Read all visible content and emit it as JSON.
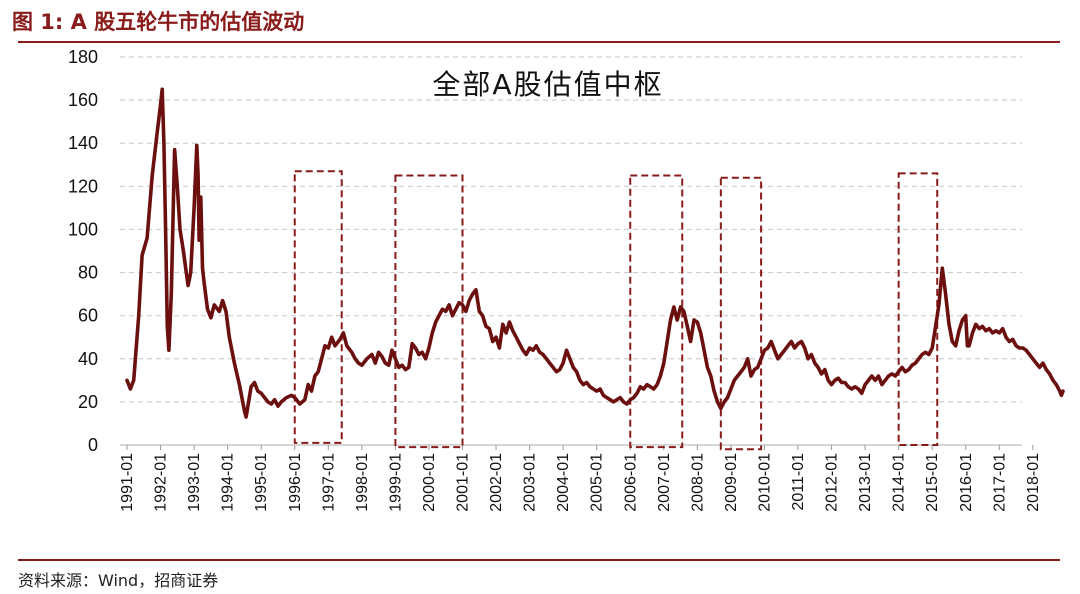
{
  "figure_title": "图 1:  A 股五轮牛市的估值波动",
  "source": "资料来源：Wind，招商证券",
  "colors": {
    "line": "#6b0f0f",
    "accent": "#8a1b1b",
    "grid": "#cfcfcf",
    "box": "#8a1b1b"
  },
  "chart_data": {
    "type": "line",
    "title": "全部A股估值中枢",
    "xlabel": "",
    "ylabel": "",
    "ylim": [
      0,
      180
    ],
    "yticks": [
      0,
      20,
      40,
      60,
      80,
      100,
      120,
      140,
      160,
      180
    ],
    "xticks": [
      "1991-01",
      "1992-01",
      "1993-01",
      "1994-01",
      "1995-01",
      "1996-01",
      "1997-01",
      "1998-01",
      "1999-01",
      "2000-01",
      "2001-01",
      "2002-01",
      "2003-01",
      "2004-01",
      "2005-01",
      "2006-01",
      "2007-01",
      "2008-01",
      "2009-01",
      "2010-01",
      "2011-01",
      "2012-01",
      "2013-01",
      "2014-01",
      "2015-01",
      "2016-01",
      "2017-01",
      "2018-01"
    ],
    "grid": true,
    "series": [
      {
        "points": [
          [
            1991.0,
            30
          ],
          [
            1991.1,
            26
          ],
          [
            1991.2,
            30
          ],
          [
            1991.35,
            60
          ],
          [
            1991.45,
            88
          ],
          [
            1991.6,
            96
          ],
          [
            1991.75,
            125
          ],
          [
            1991.9,
            145
          ],
          [
            1992.0,
            158
          ],
          [
            1992.05,
            165
          ],
          [
            1992.1,
            140
          ],
          [
            1992.15,
            100
          ],
          [
            1992.2,
            55
          ],
          [
            1992.25,
            44
          ],
          [
            1992.32,
            70
          ],
          [
            1992.42,
            137
          ],
          [
            1992.5,
            120
          ],
          [
            1992.58,
            100
          ],
          [
            1992.68,
            90
          ],
          [
            1992.75,
            82
          ],
          [
            1992.82,
            74
          ],
          [
            1992.9,
            80
          ],
          [
            1993.0,
            110
          ],
          [
            1993.08,
            139
          ],
          [
            1993.12,
            125
          ],
          [
            1993.15,
            95
          ],
          [
            1993.2,
            115
          ],
          [
            1993.25,
            82
          ],
          [
            1993.3,
            75
          ],
          [
            1993.4,
            63
          ],
          [
            1993.5,
            59
          ],
          [
            1993.6,
            65
          ],
          [
            1993.75,
            62
          ],
          [
            1993.85,
            67
          ],
          [
            1993.95,
            62
          ],
          [
            1994.05,
            50
          ],
          [
            1994.2,
            38
          ],
          [
            1994.35,
            28
          ],
          [
            1994.5,
            16
          ],
          [
            1994.55,
            13
          ],
          [
            1994.7,
            27
          ],
          [
            1994.8,
            29
          ],
          [
            1994.9,
            25
          ],
          [
            1995.0,
            24
          ],
          [
            1995.1,
            22
          ],
          [
            1995.2,
            20
          ],
          [
            1995.3,
            19
          ],
          [
            1995.4,
            21
          ],
          [
            1995.5,
            18
          ],
          [
            1995.6,
            20
          ],
          [
            1995.75,
            22
          ],
          [
            1995.9,
            23
          ],
          [
            1996.0,
            22
          ],
          [
            1996.15,
            19
          ],
          [
            1996.3,
            21
          ],
          [
            1996.4,
            28
          ],
          [
            1996.5,
            25
          ],
          [
            1996.6,
            32
          ],
          [
            1996.7,
            34
          ],
          [
            1996.8,
            40
          ],
          [
            1996.9,
            46
          ],
          [
            1997.0,
            45
          ],
          [
            1997.1,
            50
          ],
          [
            1997.2,
            46
          ],
          [
            1997.35,
            49
          ],
          [
            1997.45,
            52
          ],
          [
            1997.55,
            46
          ],
          [
            1997.7,
            43
          ],
          [
            1997.8,
            40
          ],
          [
            1997.9,
            38
          ],
          [
            1998.0,
            37
          ],
          [
            1998.15,
            40
          ],
          [
            1998.3,
            42
          ],
          [
            1998.4,
            38
          ],
          [
            1998.5,
            43
          ],
          [
            1998.6,
            41
          ],
          [
            1998.7,
            38
          ],
          [
            1998.8,
            37
          ],
          [
            1998.9,
            44
          ],
          [
            1999.0,
            40
          ],
          [
            1999.1,
            36
          ],
          [
            1999.2,
            37
          ],
          [
            1999.3,
            35
          ],
          [
            1999.4,
            36
          ],
          [
            1999.5,
            47
          ],
          [
            1999.6,
            45
          ],
          [
            1999.7,
            42
          ],
          [
            1999.8,
            43
          ],
          [
            1999.9,
            40
          ],
          [
            2000.0,
            45
          ],
          [
            2000.1,
            52
          ],
          [
            2000.2,
            57
          ],
          [
            2000.3,
            60
          ],
          [
            2000.4,
            63
          ],
          [
            2000.5,
            62
          ],
          [
            2000.6,
            65
          ],
          [
            2000.7,
            60
          ],
          [
            2000.8,
            63
          ],
          [
            2000.9,
            66
          ],
          [
            2001.0,
            65
          ],
          [
            2001.1,
            62
          ],
          [
            2001.2,
            67
          ],
          [
            2001.3,
            70
          ],
          [
            2001.4,
            72
          ],
          [
            2001.5,
            62
          ],
          [
            2001.6,
            60
          ],
          [
            2001.7,
            55
          ],
          [
            2001.8,
            54
          ],
          [
            2001.9,
            48
          ],
          [
            2002.0,
            50
          ],
          [
            2002.1,
            45
          ],
          [
            2002.2,
            56
          ],
          [
            2002.3,
            52
          ],
          [
            2002.4,
            57
          ],
          [
            2002.5,
            53
          ],
          [
            2002.6,
            50
          ],
          [
            2002.7,
            47
          ],
          [
            2002.8,
            44
          ],
          [
            2002.9,
            42
          ],
          [
            2003.0,
            45
          ],
          [
            2003.1,
            44
          ],
          [
            2003.2,
            46
          ],
          [
            2003.3,
            43
          ],
          [
            2003.4,
            42
          ],
          [
            2003.5,
            40
          ],
          [
            2003.6,
            38
          ],
          [
            2003.7,
            36
          ],
          [
            2003.8,
            34
          ],
          [
            2003.9,
            35
          ],
          [
            2004.0,
            38
          ],
          [
            2004.1,
            44
          ],
          [
            2004.2,
            40
          ],
          [
            2004.3,
            36
          ],
          [
            2004.4,
            34
          ],
          [
            2004.5,
            30
          ],
          [
            2004.6,
            28
          ],
          [
            2004.7,
            29
          ],
          [
            2004.8,
            27
          ],
          [
            2004.9,
            26
          ],
          [
            2005.0,
            25
          ],
          [
            2005.1,
            26
          ],
          [
            2005.2,
            23
          ],
          [
            2005.3,
            22
          ],
          [
            2005.4,
            21
          ],
          [
            2005.5,
            20
          ],
          [
            2005.6,
            21
          ],
          [
            2005.7,
            22
          ],
          [
            2005.8,
            20
          ],
          [
            2005.9,
            19
          ],
          [
            2006.0,
            21
          ],
          [
            2006.1,
            22
          ],
          [
            2006.2,
            24
          ],
          [
            2006.3,
            27
          ],
          [
            2006.4,
            26
          ],
          [
            2006.5,
            28
          ],
          [
            2006.6,
            27
          ],
          [
            2006.7,
            26
          ],
          [
            2006.8,
            28
          ],
          [
            2006.9,
            32
          ],
          [
            2007.0,
            38
          ],
          [
            2007.1,
            48
          ],
          [
            2007.2,
            58
          ],
          [
            2007.3,
            64
          ],
          [
            2007.4,
            58
          ],
          [
            2007.5,
            64
          ],
          [
            2007.6,
            62
          ],
          [
            2007.7,
            55
          ],
          [
            2007.8,
            48
          ],
          [
            2007.9,
            58
          ],
          [
            2008.0,
            57
          ],
          [
            2008.1,
            52
          ],
          [
            2008.2,
            44
          ],
          [
            2008.3,
            36
          ],
          [
            2008.4,
            32
          ],
          [
            2008.5,
            25
          ],
          [
            2008.6,
            20
          ],
          [
            2008.7,
            17
          ],
          [
            2008.8,
            20
          ],
          [
            2008.9,
            22
          ],
          [
            2009.0,
            26
          ],
          [
            2009.1,
            30
          ],
          [
            2009.2,
            32
          ],
          [
            2009.3,
            34
          ],
          [
            2009.4,
            36
          ],
          [
            2009.5,
            40
          ],
          [
            2009.6,
            32
          ],
          [
            2009.7,
            35
          ],
          [
            2009.8,
            36
          ],
          [
            2009.9,
            40
          ],
          [
            2010.0,
            44
          ],
          [
            2010.1,
            45
          ],
          [
            2010.2,
            48
          ],
          [
            2010.3,
            44
          ],
          [
            2010.4,
            40
          ],
          [
            2010.5,
            42
          ],
          [
            2010.6,
            44
          ],
          [
            2010.7,
            46
          ],
          [
            2010.8,
            48
          ],
          [
            2010.9,
            45
          ],
          [
            2011.0,
            47
          ],
          [
            2011.1,
            48
          ],
          [
            2011.2,
            45
          ],
          [
            2011.3,
            40
          ],
          [
            2011.4,
            42
          ],
          [
            2011.5,
            38
          ],
          [
            2011.6,
            36
          ],
          [
            2011.7,
            33
          ],
          [
            2011.8,
            35
          ],
          [
            2011.9,
            30
          ],
          [
            2012.0,
            28
          ],
          [
            2012.1,
            30
          ],
          [
            2012.2,
            31
          ],
          [
            2012.3,
            29
          ],
          [
            2012.4,
            29
          ],
          [
            2012.5,
            27
          ],
          [
            2012.6,
            26
          ],
          [
            2012.7,
            27
          ],
          [
            2012.8,
            26
          ],
          [
            2012.9,
            24
          ],
          [
            2013.0,
            28
          ],
          [
            2013.1,
            30
          ],
          [
            2013.2,
            32
          ],
          [
            2013.3,
            30
          ],
          [
            2013.4,
            32
          ],
          [
            2013.5,
            28
          ],
          [
            2013.6,
            30
          ],
          [
            2013.7,
            32
          ],
          [
            2013.8,
            33
          ],
          [
            2013.9,
            32
          ],
          [
            2014.0,
            34
          ],
          [
            2014.1,
            36
          ],
          [
            2014.2,
            34
          ],
          [
            2014.3,
            35
          ],
          [
            2014.4,
            37
          ],
          [
            2014.5,
            38
          ],
          [
            2014.6,
            40
          ],
          [
            2014.7,
            42
          ],
          [
            2014.8,
            43
          ],
          [
            2014.9,
            42
          ],
          [
            2015.0,
            45
          ],
          [
            2015.1,
            55
          ],
          [
            2015.2,
            65
          ],
          [
            2015.3,
            82
          ],
          [
            2015.4,
            70
          ],
          [
            2015.5,
            56
          ],
          [
            2015.6,
            48
          ],
          [
            2015.7,
            46
          ],
          [
            2015.8,
            53
          ],
          [
            2015.9,
            58
          ],
          [
            2016.0,
            60
          ],
          [
            2016.05,
            46
          ],
          [
            2016.1,
            46
          ],
          [
            2016.2,
            52
          ],
          [
            2016.3,
            56
          ],
          [
            2016.4,
            54
          ],
          [
            2016.5,
            55
          ],
          [
            2016.6,
            53
          ],
          [
            2016.7,
            54
          ],
          [
            2016.8,
            52
          ],
          [
            2016.9,
            53
          ],
          [
            2017.0,
            52
          ],
          [
            2017.1,
            54
          ],
          [
            2017.2,
            50
          ],
          [
            2017.3,
            48
          ],
          [
            2017.4,
            49
          ],
          [
            2017.5,
            46
          ],
          [
            2017.6,
            45
          ],
          [
            2017.7,
            45
          ],
          [
            2017.8,
            44
          ],
          [
            2017.9,
            42
          ],
          [
            2018.0,
            40
          ],
          [
            2018.1,
            38
          ],
          [
            2018.2,
            36
          ],
          [
            2018.3,
            38
          ],
          [
            2018.4,
            35
          ],
          [
            2018.5,
            33
          ],
          [
            2018.6,
            30
          ],
          [
            2018.7,
            28
          ],
          [
            2018.8,
            25
          ],
          [
            2018.85,
            23
          ],
          [
            2018.9,
            25
          ]
        ]
      }
    ],
    "highlight_periods": [
      {
        "from": 1996.0,
        "to": 1997.4,
        "ymin": 1,
        "ymax": 127
      },
      {
        "from": 1999.0,
        "to": 2001.0,
        "ymin": -1,
        "ymax": 125
      },
      {
        "from": 2006.0,
        "to": 2007.55,
        "ymin": -1,
        "ymax": 125
      },
      {
        "from": 2008.7,
        "to": 2009.9,
        "ymin": -2,
        "ymax": 124
      },
      {
        "from": 2014.0,
        "to": 2015.15,
        "ymin": 0,
        "ymax": 126
      }
    ]
  }
}
